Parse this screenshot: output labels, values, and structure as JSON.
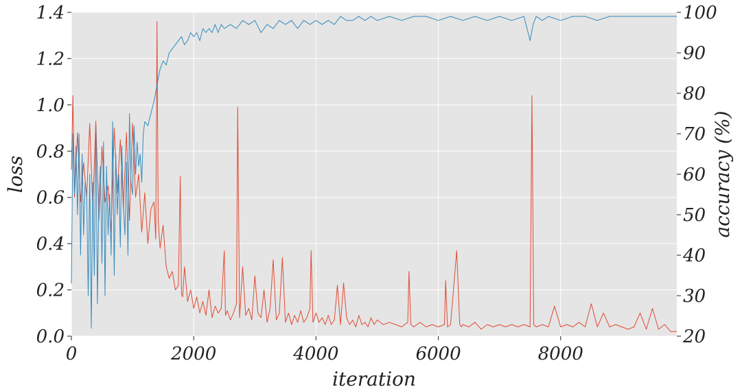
{
  "chart_data": {
    "type": "line",
    "title": "",
    "xlabel": "iteration",
    "ylabel": "loss",
    "y2label": "accuracy (%)",
    "xlim": [
      0,
      9900
    ],
    "ylim": [
      0,
      1.4
    ],
    "y2lim": [
      20,
      100
    ],
    "xticks": [
      "0",
      "2000",
      "4000",
      "6000",
      "8000"
    ],
    "yticks": [
      "0.0",
      "0.2",
      "0.4",
      "0.6",
      "0.8",
      "1.0",
      "1.2",
      "1.4"
    ],
    "y2ticks": [
      "20",
      "30",
      "40",
      "50",
      "60",
      "70",
      "80",
      "90",
      "100"
    ],
    "grid": true,
    "background_color": "#e5e5e5",
    "series": [
      {
        "axis": "left",
        "color": "#e24a33",
        "x": [
          0,
          25,
          50,
          100,
          150,
          200,
          250,
          300,
          350,
          400,
          450,
          500,
          550,
          600,
          650,
          700,
          750,
          800,
          850,
          900,
          950,
          1000,
          1050,
          1100,
          1150,
          1200,
          1250,
          1300,
          1350,
          1380,
          1400,
          1420,
          1450,
          1500,
          1550,
          1600,
          1650,
          1700,
          1750,
          1780,
          1800,
          1820,
          1850,
          1900,
          1950,
          2000,
          2050,
          2100,
          2150,
          2200,
          2250,
          2300,
          2350,
          2400,
          2450,
          2500,
          2520,
          2550,
          2600,
          2650,
          2700,
          2720,
          2750,
          2800,
          2850,
          2900,
          2950,
          3000,
          3050,
          3100,
          3150,
          3200,
          3250,
          3300,
          3350,
          3400,
          3450,
          3500,
          3550,
          3600,
          3650,
          3700,
          3750,
          3800,
          3850,
          3900,
          3920,
          3950,
          4000,
          4050,
          4100,
          4150,
          4200,
          4250,
          4300,
          4350,
          4400,
          4450,
          4500,
          4550,
          4600,
          4650,
          4700,
          4750,
          4800,
          4850,
          4900,
          4950,
          5000,
          5100,
          5200,
          5300,
          5400,
          5500,
          5520,
          5550,
          5600,
          5700,
          5800,
          5900,
          6000,
          6100,
          6120,
          6150,
          6200,
          6300,
          6350,
          6380,
          6400,
          6500,
          6600,
          6700,
          6800,
          6900,
          7000,
          7100,
          7200,
          7300,
          7400,
          7500,
          7530,
          7560,
          7600,
          7700,
          7800,
          7900,
          8000,
          8100,
          8200,
          8300,
          8400,
          8500,
          8600,
          8700,
          8800,
          8900,
          9000,
          9100,
          9200,
          9300,
          9400,
          9500,
          9600,
          9700,
          9800,
          9900
        ],
        "values": [
          0.72,
          1.04,
          0.6,
          0.88,
          0.58,
          0.75,
          0.6,
          0.92,
          0.55,
          0.93,
          0.5,
          0.82,
          0.58,
          0.65,
          0.45,
          0.9,
          0.62,
          0.85,
          0.55,
          0.88,
          0.5,
          0.92,
          0.6,
          0.7,
          0.45,
          0.62,
          0.4,
          0.55,
          0.58,
          0.42,
          1.36,
          0.5,
          0.38,
          0.48,
          0.3,
          0.25,
          0.28,
          0.2,
          0.22,
          0.69,
          0.18,
          0.17,
          0.3,
          0.15,
          0.2,
          0.12,
          0.17,
          0.1,
          0.15,
          0.09,
          0.2,
          0.08,
          0.13,
          0.1,
          0.12,
          0.37,
          0.09,
          0.11,
          0.07,
          0.1,
          0.14,
          0.99,
          0.08,
          0.3,
          0.09,
          0.12,
          0.07,
          0.26,
          0.1,
          0.08,
          0.2,
          0.06,
          0.12,
          0.33,
          0.07,
          0.1,
          0.34,
          0.06,
          0.1,
          0.05,
          0.09,
          0.06,
          0.11,
          0.06,
          0.08,
          0.12,
          0.37,
          0.06,
          0.1,
          0.06,
          0.08,
          0.05,
          0.09,
          0.05,
          0.07,
          0.22,
          0.05,
          0.23,
          0.08,
          0.05,
          0.07,
          0.04,
          0.09,
          0.05,
          0.06,
          0.04,
          0.08,
          0.05,
          0.07,
          0.05,
          0.06,
          0.05,
          0.04,
          0.06,
          0.28,
          0.05,
          0.04,
          0.06,
          0.04,
          0.05,
          0.04,
          0.05,
          0.24,
          0.04,
          0.05,
          0.37,
          0.05,
          0.04,
          0.05,
          0.04,
          0.06,
          0.03,
          0.05,
          0.04,
          0.05,
          0.04,
          0.05,
          0.04,
          0.05,
          0.04,
          1.04,
          0.05,
          0.04,
          0.05,
          0.04,
          0.13,
          0.04,
          0.05,
          0.04,
          0.06,
          0.04,
          0.14,
          0.04,
          0.1,
          0.04,
          0.05,
          0.04,
          0.03,
          0.04,
          0.1,
          0.03,
          0.12,
          0.03,
          0.05,
          0.02,
          0.02
        ]
      },
      {
        "axis": "right",
        "color": "#348abd",
        "x": [
          0,
          25,
          50,
          75,
          100,
          125,
          150,
          175,
          200,
          225,
          250,
          275,
          300,
          325,
          350,
          375,
          400,
          425,
          450,
          475,
          500,
          525,
          550,
          575,
          600,
          625,
          650,
          675,
          700,
          725,
          750,
          775,
          800,
          825,
          850,
          875,
          900,
          925,
          950,
          975,
          1000,
          1025,
          1050,
          1075,
          1100,
          1125,
          1150,
          1175,
          1200,
          1250,
          1300,
          1350,
          1400,
          1450,
          1500,
          1550,
          1600,
          1650,
          1700,
          1750,
          1800,
          1850,
          1900,
          1950,
          2000,
          2050,
          2100,
          2150,
          2200,
          2250,
          2300,
          2350,
          2400,
          2450,
          2500,
          2600,
          2700,
          2800,
          2900,
          3000,
          3100,
          3200,
          3300,
          3400,
          3500,
          3600,
          3700,
          3800,
          3900,
          4000,
          4100,
          4200,
          4300,
          4400,
          4500,
          4600,
          4700,
          4800,
          4900,
          5000,
          5200,
          5400,
          5600,
          5800,
          6000,
          6200,
          6400,
          6600,
          6800,
          7000,
          7200,
          7400,
          7500,
          7550,
          7600,
          7700,
          7800,
          8000,
          8200,
          8400,
          8600,
          8800,
          9000,
          9200,
          9400,
          9600,
          9800,
          9900
        ],
        "values": [
          33,
          70,
          55,
          67,
          50,
          70,
          40,
          65,
          45,
          58,
          55,
          30,
          60,
          22,
          58,
          35,
          72,
          28,
          55,
          62,
          38,
          68,
          30,
          62,
          45,
          55,
          40,
          73,
          35,
          65,
          50,
          60,
          42,
          67,
          52,
          45,
          63,
          40,
          75,
          58,
          55,
          72,
          60,
          68,
          62,
          65,
          58,
          70,
          73,
          72,
          75,
          78,
          82,
          86,
          88,
          87,
          90,
          91,
          92,
          93,
          94,
          92,
          93,
          95,
          94,
          95,
          93,
          96,
          95,
          96,
          95,
          97,
          95,
          97,
          96,
          97,
          96,
          98,
          97,
          98,
          95,
          97,
          96,
          98,
          97,
          98,
          96,
          98,
          97,
          98,
          97,
          98,
          97,
          99,
          98,
          98,
          99,
          98,
          99,
          98,
          99,
          98,
          99,
          99,
          98,
          99,
          98,
          99,
          98,
          99,
          98,
          99,
          93,
          97,
          99,
          98,
          99,
          98,
          99,
          99,
          98,
          99,
          99,
          99,
          99,
          99,
          99,
          99
        ]
      }
    ]
  }
}
